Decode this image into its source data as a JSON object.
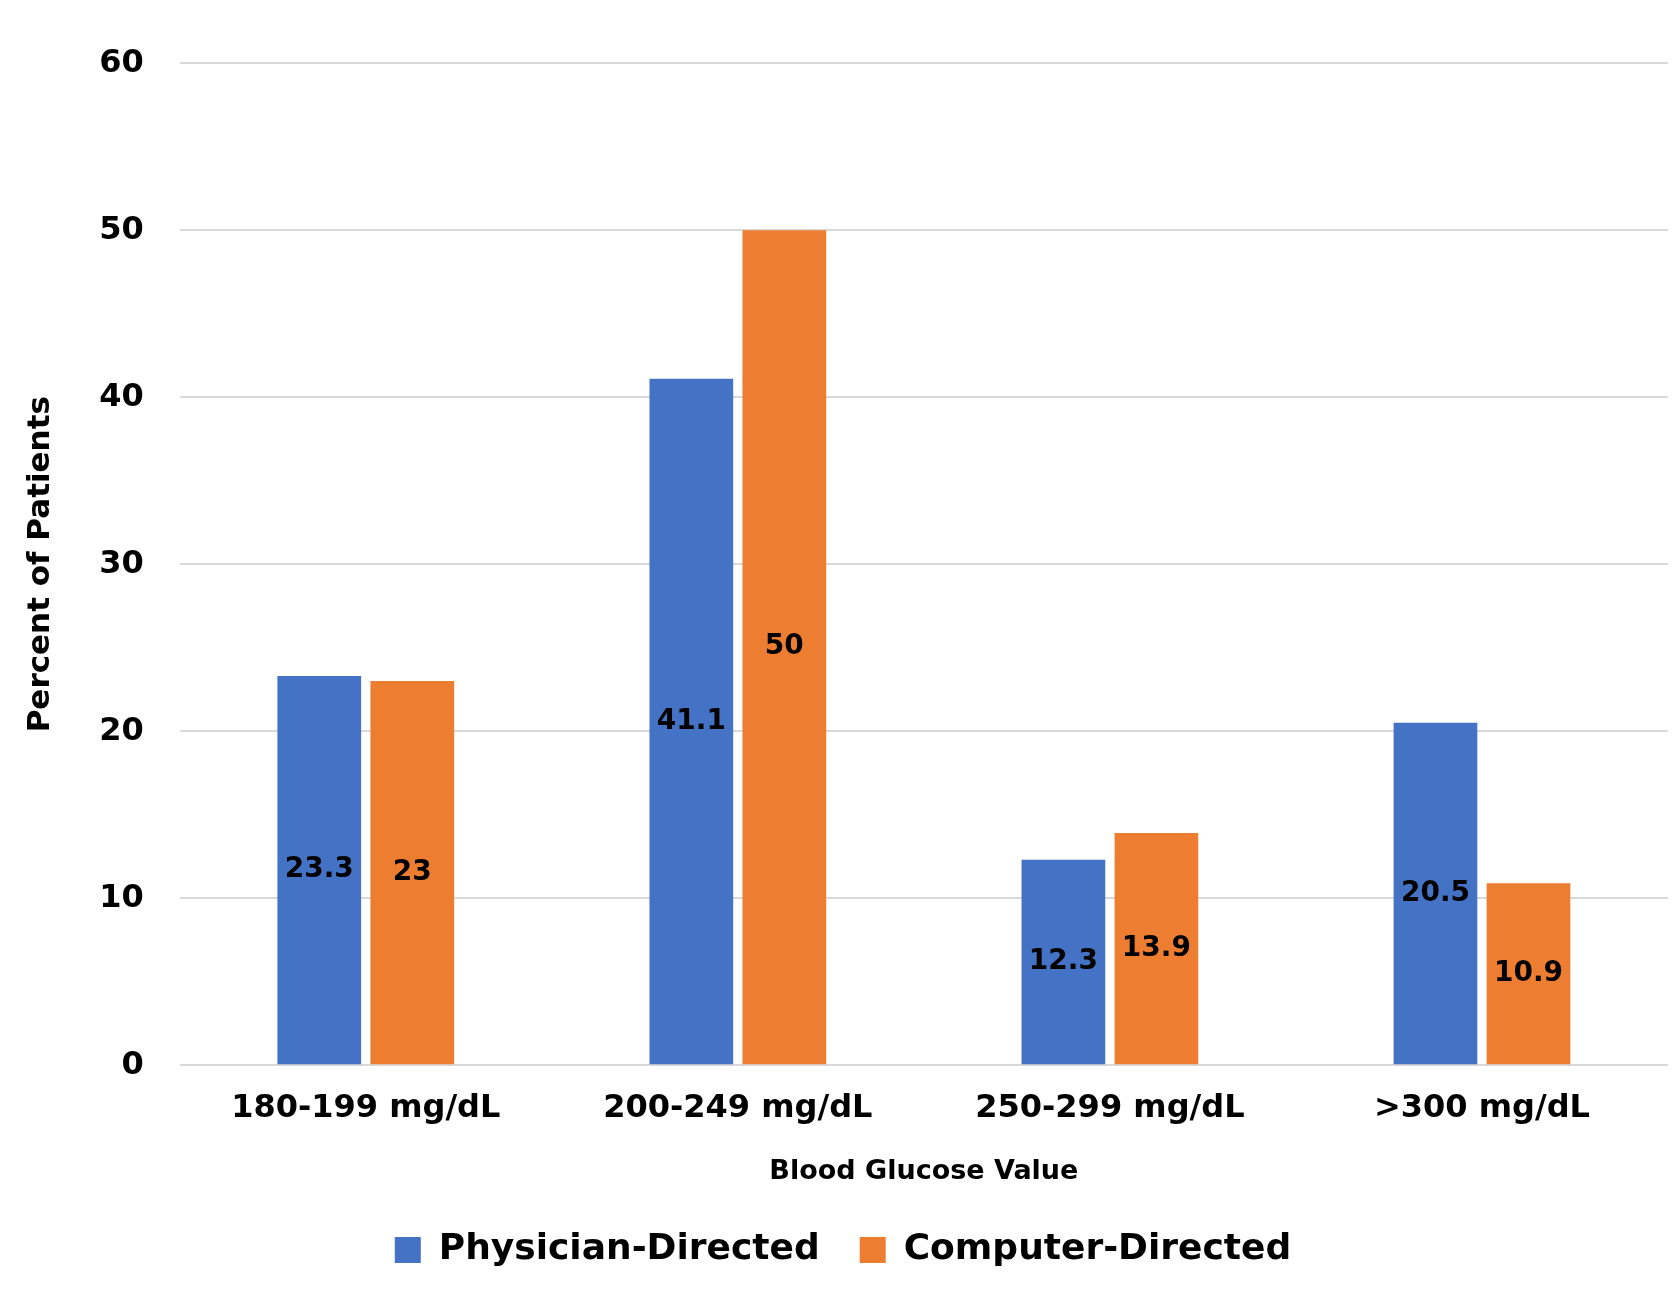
{
  "chart_data": {
    "type": "bar",
    "xlabel": "Blood Glucose Value",
    "ylabel": "Percent of Patients",
    "categories": [
      "180-199 mg/dL",
      "200-249 mg/dL",
      "250-299 mg/dL",
      ">300 mg/dL"
    ],
    "series": [
      {
        "name": "Physician-Directed",
        "color": "#4472c4",
        "values": [
          23.3,
          41.1,
          12.3,
          20.5
        ]
      },
      {
        "name": "Computer-Directed",
        "color": "#ed7d31",
        "values": [
          23,
          50,
          13.9,
          10.9
        ]
      }
    ],
    "ylim": [
      0,
      60
    ],
    "yticks": [
      0,
      10,
      20,
      30,
      40,
      50,
      60
    ],
    "grid": "y",
    "legend": "bottom",
    "data_labels": true
  }
}
